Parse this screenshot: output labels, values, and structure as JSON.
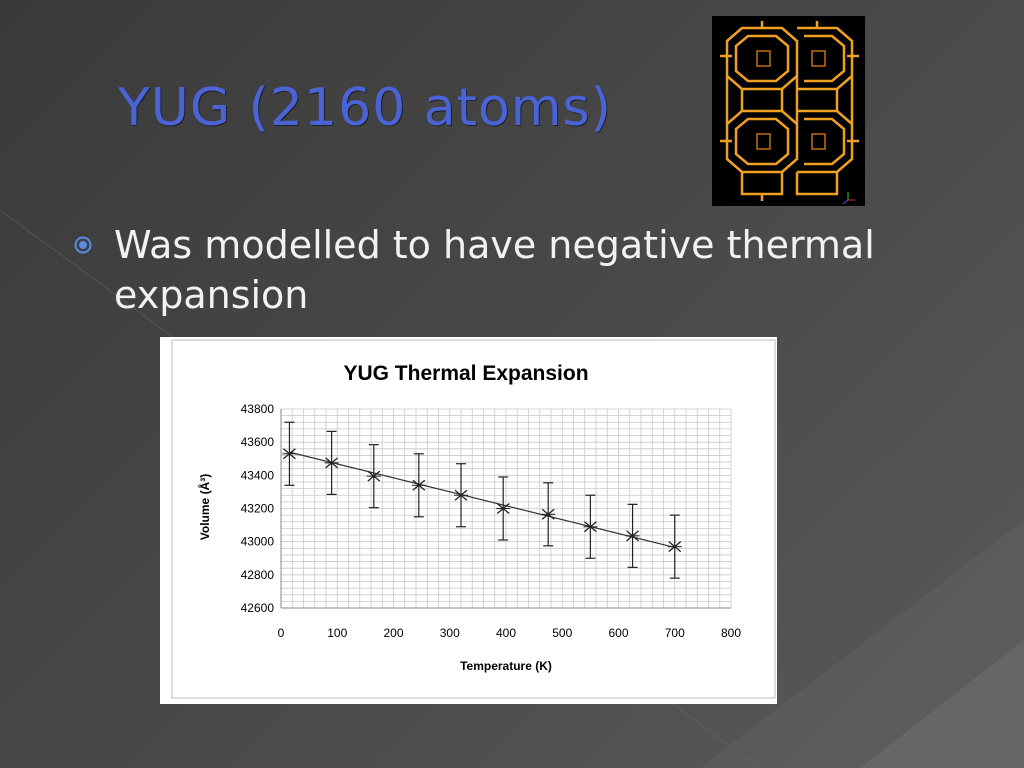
{
  "slide": {
    "title": "YUG (2160 atoms)",
    "bullet_text": "Was modelled to have negative thermal expansion",
    "colors": {
      "title": "#4a63d6",
      "bullet": "#5b8be0",
      "structure": "#f0a020",
      "background": "#444444"
    },
    "bullet_icon": "target-bullet-icon",
    "image_icon": "zeolite-structure-icon"
  },
  "chart_data": {
    "type": "scatter",
    "title": "YUG Thermal Expansion",
    "xlabel": "Temperature (K)",
    "ylabel": "Volume (Å³)",
    "xlim": [
      0,
      800
    ],
    "ylim": [
      42600,
      43800
    ],
    "xticks": [
      0,
      100,
      200,
      300,
      400,
      500,
      600,
      700,
      800
    ],
    "yticks": [
      42600,
      42800,
      43000,
      43200,
      43400,
      43600,
      43800
    ],
    "grid": true,
    "x": [
      15,
      90,
      165,
      245,
      320,
      395,
      475,
      550,
      625,
      700
    ],
    "y": [
      43530,
      43475,
      43395,
      43340,
      43280,
      43200,
      43165,
      43090,
      43035,
      42970
    ],
    "error": [
      190,
      190,
      190,
      190,
      190,
      190,
      190,
      190,
      190,
      190
    ],
    "trendline": {
      "x": [
        15,
        700
      ],
      "y": [
        43540,
        42965
      ]
    }
  }
}
